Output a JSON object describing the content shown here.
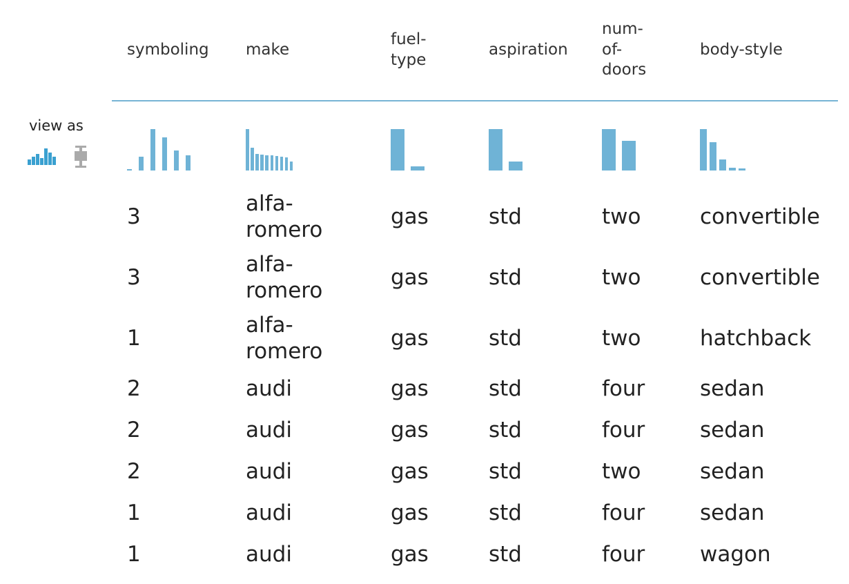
{
  "sidebar": {
    "view_as_label": "view as",
    "views": [
      {
        "name": "histogram",
        "icon": "histogram-icon",
        "active": true,
        "color": "#3aa0d0"
      },
      {
        "name": "boxplot",
        "icon": "boxplot-icon",
        "active": false,
        "color": "#aaaaaa"
      }
    ]
  },
  "table": {
    "columns": [
      {
        "key": "symboling",
        "label": "symboling",
        "histogram": [
          0.03,
          0.33,
          1.0,
          0.8,
          0.49,
          0.36
        ]
      },
      {
        "key": "make",
        "label": "make",
        "histogram": [
          1.0,
          0.55,
          0.4,
          0.38,
          0.36,
          0.36,
          0.35,
          0.34,
          0.32,
          0.22
        ]
      },
      {
        "key": "fuel-type",
        "label": "fuel-\ntype",
        "histogram": [
          1.0,
          0.1
        ]
      },
      {
        "key": "aspiration",
        "label": "aspiration",
        "histogram": [
          1.0,
          0.22
        ]
      },
      {
        "key": "num-of-doors",
        "label": "num-\nof-\ndoors",
        "histogram": [
          1.0,
          0.72
        ]
      },
      {
        "key": "body-style",
        "label": "body-style",
        "histogram": [
          1.0,
          0.68,
          0.26,
          0.07,
          0.05
        ]
      }
    ],
    "rows": [
      [
        "3",
        "alfa-\nromero",
        "gas",
        "std",
        "two",
        "convertible"
      ],
      [
        "3",
        "alfa-\nromero",
        "gas",
        "std",
        "two",
        "convertible"
      ],
      [
        "1",
        "alfa-\nromero",
        "gas",
        "std",
        "two",
        "hatchback"
      ],
      [
        "2",
        "audi",
        "gas",
        "std",
        "four",
        "sedan"
      ],
      [
        "2",
        "audi",
        "gas",
        "std",
        "four",
        "sedan"
      ],
      [
        "2",
        "audi",
        "gas",
        "std",
        "two",
        "sedan"
      ],
      [
        "1",
        "audi",
        "gas",
        "std",
        "four",
        "sedan"
      ],
      [
        "1",
        "audi",
        "gas",
        "std",
        "four",
        "wagon"
      ]
    ]
  },
  "colors": {
    "accent": "#76b4d5",
    "bar": "#6fb3d6"
  }
}
